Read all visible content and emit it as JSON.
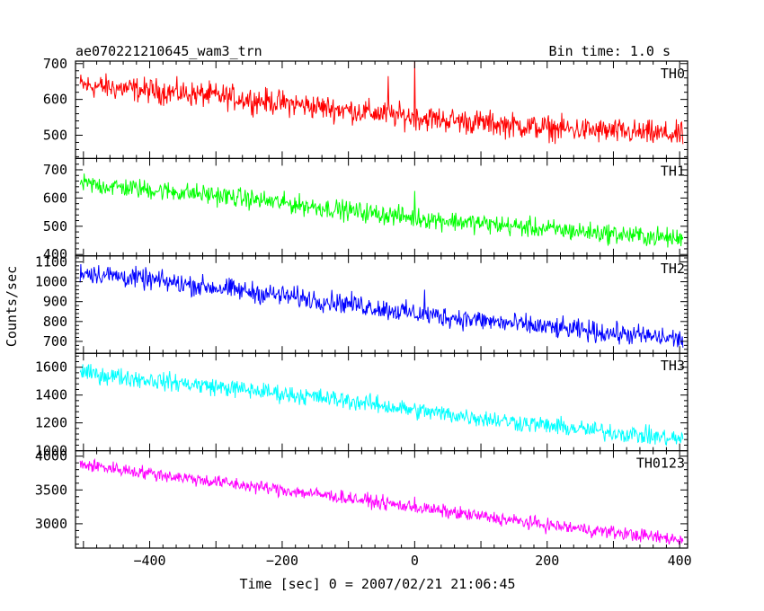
{
  "chart_data": {
    "type": "line",
    "title": "ae070221210645_wam3_trn",
    "subtitle": "Bin time: 1.0 s",
    "xlabel": "Time [sec] 0 = 2007/02/21 21:06:45",
    "ylabel": "Counts/sec",
    "xlim": [
      -512,
      412
    ],
    "x_ticks": [
      "−400",
      "−200",
      "0",
      "200",
      "400"
    ],
    "grid": false,
    "panels": [
      {
        "name": "TH0",
        "color": "#ff0000",
        "ylim": [
          435,
          707
        ],
        "y_ticks": [
          "500",
          "600",
          "700"
        ],
        "trend": {
          "x": [
            -505,
            -300,
            -100,
            0,
            200,
            405
          ],
          "y": [
            640,
            610,
            570,
            550,
            520,
            500
          ]
        },
        "noise_amplitude": 30,
        "spikes": [
          {
            "x": 0,
            "y": 705
          },
          {
            "x": -40,
            "y": 665
          }
        ]
      },
      {
        "name": "TH1",
        "color": "#00ff00",
        "ylim": [
          395,
          740
        ],
        "y_ticks": [
          "400",
          "500",
          "600",
          "700"
        ],
        "trend": {
          "x": [
            -505,
            -300,
            -100,
            0,
            200,
            405
          ],
          "y": [
            650,
            610,
            555,
            530,
            490,
            455
          ]
        },
        "noise_amplitude": 30,
        "spikes": [
          {
            "x": 0,
            "y": 625
          }
        ]
      },
      {
        "name": "TH2",
        "color": "#0000ff",
        "ylim": [
          640,
          1130
        ],
        "y_ticks": [
          "700",
          "800",
          "900",
          "1000",
          "1100"
        ],
        "trend": {
          "x": [
            -505,
            -300,
            -100,
            0,
            200,
            405
          ],
          "y": [
            1050,
            970,
            890,
            840,
            770,
            710
          ]
        },
        "noise_amplitude": 45,
        "spikes": [
          {
            "x": 15,
            "y": 960
          }
        ]
      },
      {
        "name": "TH3",
        "color": "#00ffff",
        "ylim": [
          1000,
          1700
        ],
        "y_ticks": [
          "1000",
          "1200",
          "1400",
          "1600"
        ],
        "trend": {
          "x": [
            -505,
            -300,
            -100,
            0,
            200,
            405
          ],
          "y": [
            1560,
            1460,
            1360,
            1290,
            1180,
            1080
          ]
        },
        "noise_amplitude": 55,
        "spikes": []
      },
      {
        "name": "TH0123",
        "color": "#ff00ff",
        "ylim": [
          2640,
          4080
        ],
        "y_ticks": [
          "3000",
          "3500",
          "4000"
        ],
        "trend": {
          "x": [
            -505,
            -300,
            -100,
            0,
            200,
            405
          ],
          "y": [
            3880,
            3620,
            3380,
            3240,
            2980,
            2760
          ]
        },
        "noise_amplitude": 85,
        "spikes": [
          {
            "x": 0,
            "y": 3400
          }
        ]
      }
    ]
  }
}
